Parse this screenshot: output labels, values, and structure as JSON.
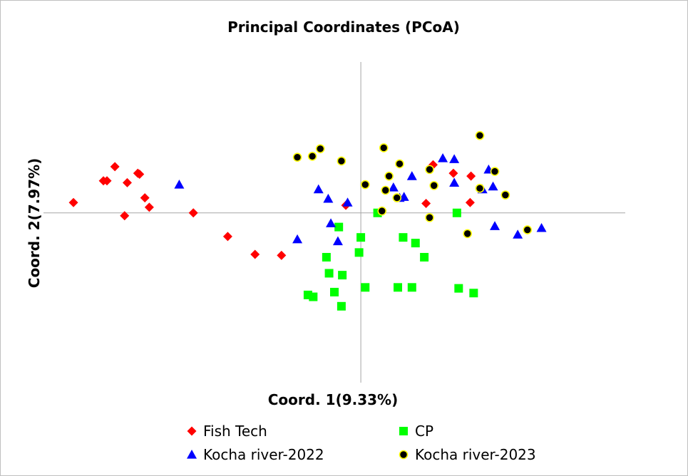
{
  "chart_data": {
    "type": "scatter",
    "title": "Principal Coordinates (PCoA)",
    "xlabel": "Coord. 1(9.33%)",
    "ylabel": "Coord. 2(7.97%)",
    "xlim": [
      -0.36,
      0.3
    ],
    "ylim": [
      -0.18,
      0.16
    ],
    "grid": false,
    "legend_position": "bottom",
    "series": [
      {
        "name": "Fish Tech",
        "marker": "diamond",
        "color": "#ff0000",
        "points": [
          [
            -0.326,
            0.011
          ],
          [
            -0.288,
            0.034
          ],
          [
            -0.292,
            0.034
          ],
          [
            -0.279,
            0.049
          ],
          [
            -0.265,
            0.032
          ],
          [
            -0.253,
            0.042
          ],
          [
            -0.251,
            0.041
          ],
          [
            -0.245,
            0.016
          ],
          [
            -0.24,
            0.006
          ],
          [
            -0.268,
            -0.003
          ],
          [
            -0.19,
            0.0
          ],
          [
            -0.151,
            -0.025
          ],
          [
            -0.12,
            -0.044
          ],
          [
            -0.09,
            -0.045
          ],
          [
            -0.017,
            0.008
          ],
          [
            0.074,
            0.01
          ],
          [
            0.082,
            0.051
          ],
          [
            0.105,
            0.042
          ],
          [
            0.125,
            0.039
          ],
          [
            0.124,
            0.011
          ]
        ]
      },
      {
        "name": "CP",
        "marker": "square",
        "color": "#00ff00",
        "points": [
          [
            0.019,
            0.0
          ],
          [
            0.109,
            0.0
          ],
          [
            -0.025,
            -0.015
          ],
          [
            0.0,
            -0.026
          ],
          [
            0.048,
            -0.026
          ],
          [
            0.062,
            -0.032
          ],
          [
            -0.002,
            -0.042
          ],
          [
            -0.039,
            -0.047
          ],
          [
            0.072,
            -0.047
          ],
          [
            -0.036,
            -0.064
          ],
          [
            -0.021,
            -0.066
          ],
          [
            0.005,
            -0.079
          ],
          [
            0.042,
            -0.079
          ],
          [
            0.058,
            -0.079
          ],
          [
            0.111,
            -0.08
          ],
          [
            0.128,
            -0.085
          ],
          [
            -0.03,
            -0.084
          ],
          [
            -0.06,
            -0.087
          ],
          [
            -0.054,
            -0.089
          ],
          [
            -0.022,
            -0.099
          ]
        ]
      },
      {
        "name": "Kocha river-2022",
        "marker": "triangle",
        "color": "#0000ff",
        "points": [
          [
            -0.206,
            0.03
          ],
          [
            -0.048,
            0.025
          ],
          [
            -0.037,
            0.015
          ],
          [
            -0.015,
            0.011
          ],
          [
            -0.034,
            -0.011
          ],
          [
            -0.072,
            -0.028
          ],
          [
            -0.026,
            -0.03
          ],
          [
            0.037,
            0.027
          ],
          [
            0.044,
            0.016
          ],
          [
            0.049,
            0.017
          ],
          [
            0.058,
            0.039
          ],
          [
            0.093,
            0.058
          ],
          [
            0.106,
            0.057
          ],
          [
            0.106,
            0.032
          ],
          [
            0.138,
            0.025
          ],
          [
            0.145,
            0.046
          ],
          [
            0.15,
            0.028
          ],
          [
            0.152,
            -0.014
          ],
          [
            0.178,
            -0.023
          ],
          [
            0.205,
            -0.016
          ]
        ]
      },
      {
        "name": "Kocha river-2023",
        "marker": "circle",
        "color": "#000000",
        "edge": "#ffff00",
        "points": [
          [
            -0.072,
            0.059
          ],
          [
            -0.055,
            0.06
          ],
          [
            -0.046,
            0.068
          ],
          [
            -0.022,
            0.055
          ],
          [
            0.026,
            0.069
          ],
          [
            0.044,
            0.052
          ],
          [
            0.032,
            0.039
          ],
          [
            0.005,
            0.03
          ],
          [
            0.028,
            0.024
          ],
          [
            0.041,
            0.016
          ],
          [
            0.078,
            0.046
          ],
          [
            0.083,
            0.029
          ],
          [
            0.135,
            0.082
          ],
          [
            0.152,
            0.044
          ],
          [
            0.164,
            0.019
          ],
          [
            0.135,
            0.026
          ],
          [
            0.024,
            0.002
          ],
          [
            0.078,
            -0.005
          ],
          [
            0.121,
            -0.022
          ],
          [
            0.189,
            -0.018
          ]
        ]
      }
    ]
  }
}
